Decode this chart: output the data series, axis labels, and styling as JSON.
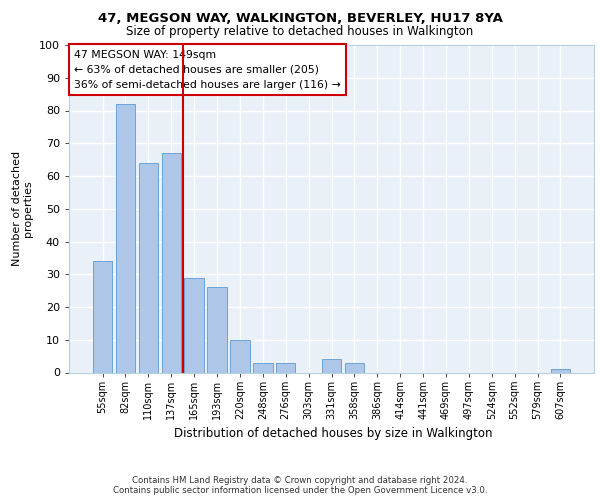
{
  "title1": "47, MEGSON WAY, WALKINGTON, BEVERLEY, HU17 8YA",
  "title2": "Size of property relative to detached houses in Walkington",
  "xlabel": "Distribution of detached houses by size in Walkington",
  "ylabel": "Number of detached\nproperties",
  "categories": [
    "55sqm",
    "82sqm",
    "110sqm",
    "137sqm",
    "165sqm",
    "193sqm",
    "220sqm",
    "248sqm",
    "276sqm",
    "303sqm",
    "331sqm",
    "358sqm",
    "386sqm",
    "414sqm",
    "441sqm",
    "469sqm",
    "497sqm",
    "524sqm",
    "552sqm",
    "579sqm",
    "607sqm"
  ],
  "values": [
    34,
    82,
    64,
    67,
    29,
    26,
    10,
    3,
    3,
    0,
    4,
    3,
    0,
    0,
    0,
    0,
    0,
    0,
    0,
    0,
    1
  ],
  "bar_color": "#aec6e8",
  "bar_edge_color": "#5b9bd5",
  "vline_x": 3.5,
  "vline_color": "#cc0000",
  "ylim": [
    0,
    100
  ],
  "yticks": [
    0,
    10,
    20,
    30,
    40,
    50,
    60,
    70,
    80,
    90,
    100
  ],
  "annotation_text": "47 MEGSON WAY: 149sqm\n← 63% of detached houses are smaller (205)\n36% of semi-detached houses are larger (116) →",
  "annotation_box_color": "#ffffff",
  "annotation_box_edge": "#cc0000",
  "footer": "Contains HM Land Registry data © Crown copyright and database right 2024.\nContains public sector information licensed under the Open Government Licence v3.0.",
  "bg_color": "#eaf0f8",
  "grid_color": "#ffffff",
  "title1_fontsize": 9.5,
  "title2_fontsize": 8.5
}
